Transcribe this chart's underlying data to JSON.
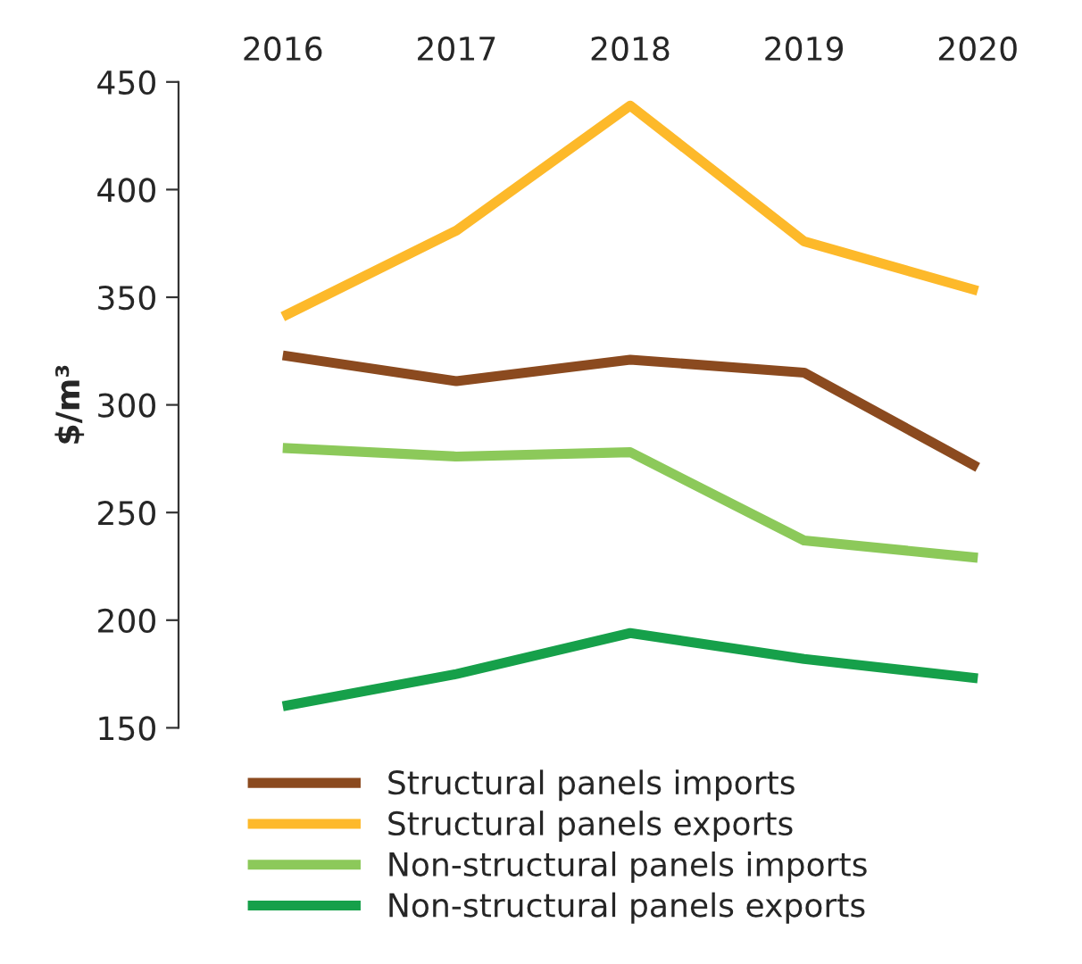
{
  "chart_data": {
    "type": "line",
    "ylabel": "$/m³",
    "categories": [
      "2016",
      "2017",
      "2018",
      "2019",
      "2020"
    ],
    "series": [
      {
        "name": "Structural panels imports",
        "color": "#8b4a1f",
        "values": [
          323,
          311,
          321,
          315,
          271
        ]
      },
      {
        "name": "Structural panels exports",
        "color": "#fdb92a",
        "values": [
          341,
          381,
          439,
          376,
          353
        ]
      },
      {
        "name": "Non-structural panels imports",
        "color": "#8cc95a",
        "values": [
          280,
          276,
          278,
          237,
          229
        ]
      },
      {
        "name": "Non-structural panels exports",
        "color": "#16a04a",
        "values": [
          160,
          175,
          194,
          182,
          173
        ]
      }
    ],
    "ylim": [
      150,
      450
    ],
    "yticks": [
      150,
      200,
      250,
      300,
      350,
      400,
      450
    ],
    "grid": false,
    "legend": "bottom",
    "marker": "none",
    "line_style": "solid"
  }
}
